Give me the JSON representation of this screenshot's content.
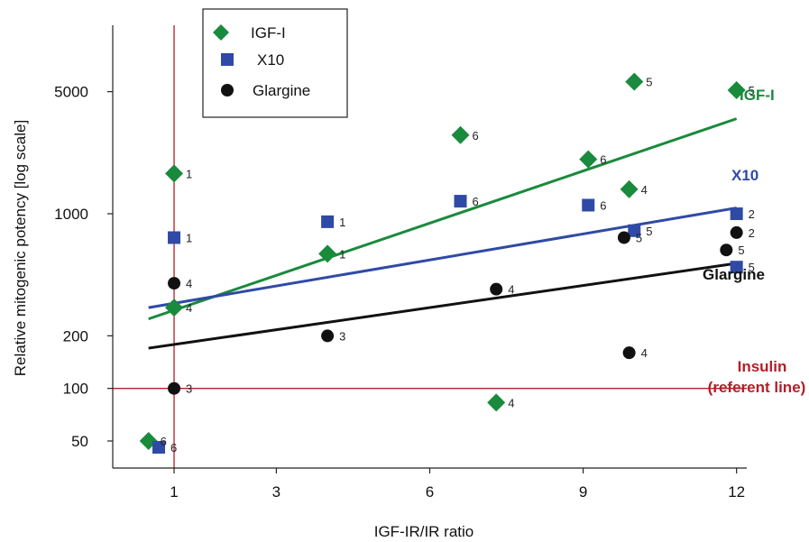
{
  "chart_data": {
    "type": "scatter",
    "xlabel": "IGF-IR/IR ratio",
    "ylabel": "Relative mitogenic potency [log scale]",
    "xscale": "linear",
    "yscale": "log",
    "xlim": [
      -0.2,
      12.2
    ],
    "ylim": [
      35,
      12000
    ],
    "x_ticks": [
      1,
      3,
      6,
      9,
      12
    ],
    "y_ticks": [
      50,
      100,
      200,
      1000,
      5000
    ],
    "grid": false,
    "legend": {
      "placement": "top-left",
      "entries": [
        {
          "label": "IGF-I",
          "marker": "diamond",
          "color": "#1a8a3c"
        },
        {
          "label": "X10",
          "marker": "square",
          "color": "#2f4aa6"
        },
        {
          "label": "Glargine",
          "marker": "circle",
          "color": "#111111"
        }
      ]
    },
    "series": [
      {
        "name": "IGF-I",
        "marker": "diamond",
        "color": "#1a8a3c",
        "points": [
          {
            "x": 1.0,
            "y": 1700,
            "label": "1"
          },
          {
            "x": 4.0,
            "y": 590,
            "label": "1"
          },
          {
            "x": 1.0,
            "y": 290,
            "label": "4"
          },
          {
            "x": 7.3,
            "y": 83,
            "label": "4"
          },
          {
            "x": 9.9,
            "y": 1380,
            "label": "4"
          },
          {
            "x": 10.0,
            "y": 5700,
            "label": "5"
          },
          {
            "x": 12.0,
            "y": 5100,
            "label": "5"
          },
          {
            "x": 6.6,
            "y": 2820,
            "label": "6"
          },
          {
            "x": 9.1,
            "y": 2050,
            "label": "6"
          },
          {
            "x": 0.5,
            "y": 50,
            "label": "6"
          }
        ],
        "fit": {
          "x": [
            0.5,
            12
          ],
          "y": [
            250,
            3500
          ]
        }
      },
      {
        "name": "X10",
        "marker": "square",
        "color": "#2f4aa6",
        "points": [
          {
            "x": 1.0,
            "y": 730,
            "label": "1"
          },
          {
            "x": 4.0,
            "y": 900,
            "label": "1"
          },
          {
            "x": 12.0,
            "y": 1000,
            "label": "2"
          },
          {
            "x": 10.0,
            "y": 800,
            "label": "5"
          },
          {
            "x": 12.0,
            "y": 495,
            "label": "5"
          },
          {
            "x": 6.6,
            "y": 1180,
            "label": "6"
          },
          {
            "x": 9.1,
            "y": 1120,
            "label": "6"
          },
          {
            "x": 0.7,
            "y": 46,
            "label": "6"
          }
        ],
        "fit": {
          "x": [
            0.5,
            12
          ],
          "y": [
            290,
            1080
          ]
        }
      },
      {
        "name": "Glargine",
        "marker": "circle",
        "color": "#111111",
        "points": [
          {
            "x": 1.0,
            "y": 100,
            "label": "3"
          },
          {
            "x": 4.0,
            "y": 200,
            "label": "3"
          },
          {
            "x": 1.0,
            "y": 400,
            "label": "4"
          },
          {
            "x": 7.3,
            "y": 370,
            "label": "4"
          },
          {
            "x": 9.9,
            "y": 160,
            "label": "4"
          },
          {
            "x": 12.0,
            "y": 780,
            "label": "2"
          },
          {
            "x": 9.8,
            "y": 730,
            "label": "5"
          },
          {
            "x": 11.8,
            "y": 620,
            "label": "5"
          }
        ],
        "fit": {
          "x": [
            0.5,
            12
          ],
          "y": [
            170,
            520
          ]
        }
      }
    ],
    "annotations": [
      {
        "text": "IGF-I",
        "color": "#1a8a3c"
      },
      {
        "text": "X10",
        "color": "#2f4aa6"
      },
      {
        "text": "Glargine",
        "color": "#111111"
      },
      {
        "text": "Insulin",
        "color": "#b3202a"
      },
      {
        "text": "(referent line)",
        "color": "#b3202a"
      }
    ],
    "reference_lines": [
      {
        "orientation": "vertical",
        "x": 1,
        "color": "#b3202a"
      },
      {
        "orientation": "horizontal",
        "y": 100,
        "color": "#b3202a"
      }
    ]
  }
}
